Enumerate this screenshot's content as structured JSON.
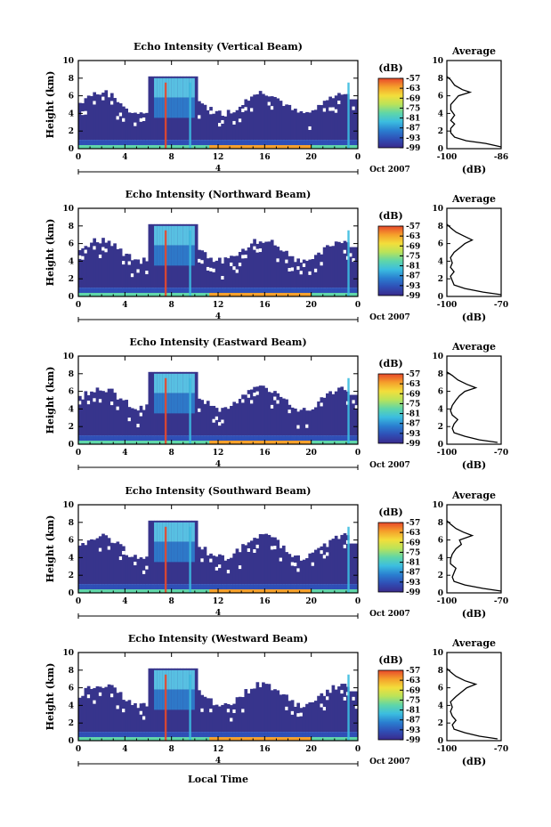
{
  "chart_data": {
    "type": "heatmap",
    "xlabel": "Local Time",
    "date_label": "Oct 2007",
    "ylabel": "Height (km)",
    "x_ticks": [
      "0",
      "4",
      "8",
      "12",
      "16",
      "20",
      "0"
    ],
    "x_range": [
      0,
      24
    ],
    "y_ticks": [
      "0",
      "2",
      "4",
      "6",
      "8",
      "10"
    ],
    "y_range": [
      0,
      10
    ],
    "day_marker": "4",
    "colorbar": {
      "unit": "(dB)",
      "ticks": [
        "-57",
        "-63",
        "-69",
        "-75",
        "-81",
        "-87",
        "-93",
        "-99"
      ],
      "range": [
        -99,
        -57
      ],
      "colors": [
        "#3a2a8c",
        "#2f4fb6",
        "#2a7fd0",
        "#3bbde0",
        "#5fd6a8",
        "#b9e35a",
        "#f3de3b",
        "#f5a02b",
        "#e8482b"
      ]
    },
    "panels": [
      {
        "title": "Echo Intensity (Vertical Beam)",
        "avg_title": "Average",
        "avg_xlabel": "(dB)",
        "avg_xticks": [
          "-100",
          "-86"
        ],
        "avg_xrange": [
          -100,
          -86
        ],
        "avg_profile": [
          {
            "h": 0.2,
            "db": -86
          },
          {
            "h": 0.6,
            "db": -90
          },
          {
            "h": 0.9,
            "db": -95
          },
          {
            "h": 1.3,
            "db": -98
          },
          {
            "h": 1.8,
            "db": -99
          },
          {
            "h": 2.3,
            "db": -99
          },
          {
            "h": 2.8,
            "db": -98
          },
          {
            "h": 3.2,
            "db": -99
          },
          {
            "h": 3.8,
            "db": -98
          },
          {
            "h": 4.4,
            "db": -99
          },
          {
            "h": 5.0,
            "db": -99
          },
          {
            "h": 5.5,
            "db": -98
          },
          {
            "h": 6.0,
            "db": -97
          },
          {
            "h": 6.4,
            "db": -94
          },
          {
            "h": 6.7,
            "db": -96
          },
          {
            "h": 7.2,
            "db": -98
          },
          {
            "h": 7.8,
            "db": -99
          },
          {
            "h": 8.2,
            "db": -100
          }
        ]
      },
      {
        "title": "Echo Intensity (Northward Beam)",
        "avg_title": "Average",
        "avg_xlabel": "(dB)",
        "avg_xticks": [
          "-100",
          "-70"
        ],
        "avg_xrange": [
          -100,
          -70
        ],
        "avg_profile": [
          {
            "h": 0.2,
            "db": -70
          },
          {
            "h": 0.5,
            "db": -80
          },
          {
            "h": 0.9,
            "db": -90
          },
          {
            "h": 1.3,
            "db": -96
          },
          {
            "h": 1.8,
            "db": -97
          },
          {
            "h": 2.3,
            "db": -98
          },
          {
            "h": 2.8,
            "db": -96
          },
          {
            "h": 3.3,
            "db": -98
          },
          {
            "h": 3.8,
            "db": -97
          },
          {
            "h": 4.4,
            "db": -98
          },
          {
            "h": 5.0,
            "db": -96
          },
          {
            "h": 5.5,
            "db": -93
          },
          {
            "h": 6.0,
            "db": -90
          },
          {
            "h": 6.4,
            "db": -86
          },
          {
            "h": 6.8,
            "db": -90
          },
          {
            "h": 7.3,
            "db": -95
          },
          {
            "h": 7.8,
            "db": -98
          },
          {
            "h": 8.2,
            "db": -100
          }
        ]
      },
      {
        "title": "Echo Intensity (Eastward Beam)",
        "avg_title": "Average",
        "avg_xlabel": "(dB)",
        "avg_xticks": [
          "-100",
          "-70"
        ],
        "avg_xrange": [
          -100,
          -70
        ],
        "avg_profile": [
          {
            "h": 0.2,
            "db": -72
          },
          {
            "h": 0.5,
            "db": -82
          },
          {
            "h": 0.9,
            "db": -90
          },
          {
            "h": 1.3,
            "db": -96
          },
          {
            "h": 1.8,
            "db": -97
          },
          {
            "h": 2.3,
            "db": -96
          },
          {
            "h": 2.8,
            "db": -94
          },
          {
            "h": 3.3,
            "db": -97
          },
          {
            "h": 3.8,
            "db": -98
          },
          {
            "h": 4.4,
            "db": -97
          },
          {
            "h": 5.0,
            "db": -95
          },
          {
            "h": 5.5,
            "db": -93
          },
          {
            "h": 6.0,
            "db": -90
          },
          {
            "h": 6.4,
            "db": -84
          },
          {
            "h": 6.8,
            "db": -89
          },
          {
            "h": 7.3,
            "db": -94
          },
          {
            "h": 7.8,
            "db": -97
          },
          {
            "h": 8.2,
            "db": -100
          }
        ]
      },
      {
        "title": "Echo Intensity (Southward Beam)",
        "avg_title": "Average",
        "avg_xlabel": "(dB)",
        "avg_xticks": [
          "-100",
          "-70"
        ],
        "avg_xrange": [
          -100,
          -70
        ],
        "avg_profile": [
          {
            "h": 0.2,
            "db": -70
          },
          {
            "h": 0.5,
            "db": -80
          },
          {
            "h": 0.9,
            "db": -90
          },
          {
            "h": 1.3,
            "db": -96
          },
          {
            "h": 1.8,
            "db": -97
          },
          {
            "h": 2.3,
            "db": -96
          },
          {
            "h": 2.8,
            "db": -95
          },
          {
            "h": 3.3,
            "db": -98
          },
          {
            "h": 3.8,
            "db": -98
          },
          {
            "h": 4.4,
            "db": -97
          },
          {
            "h": 5.0,
            "db": -95
          },
          {
            "h": 5.5,
            "db": -92
          },
          {
            "h": 6.0,
            "db": -93
          },
          {
            "h": 6.5,
            "db": -86
          },
          {
            "h": 6.9,
            "db": -91
          },
          {
            "h": 7.3,
            "db": -95
          },
          {
            "h": 7.8,
            "db": -98
          },
          {
            "h": 8.2,
            "db": -100
          }
        ]
      },
      {
        "title": "Echo Intensity (Westward Beam)",
        "avg_title": "Average",
        "avg_xlabel": "(dB)",
        "avg_xticks": [
          "-100",
          "-70"
        ],
        "avg_xrange": [
          -100,
          -70
        ],
        "avg_profile": [
          {
            "h": 0.2,
            "db": -72
          },
          {
            "h": 0.5,
            "db": -82
          },
          {
            "h": 0.9,
            "db": -90
          },
          {
            "h": 1.3,
            "db": -96
          },
          {
            "h": 1.8,
            "db": -97
          },
          {
            "h": 2.3,
            "db": -95
          },
          {
            "h": 2.8,
            "db": -97
          },
          {
            "h": 3.3,
            "db": -98
          },
          {
            "h": 3.8,
            "db": -97
          },
          {
            "h": 4.4,
            "db": -98
          },
          {
            "h": 5.0,
            "db": -95
          },
          {
            "h": 5.5,
            "db": -92
          },
          {
            "h": 6.0,
            "db": -89
          },
          {
            "h": 6.4,
            "db": -84
          },
          {
            "h": 6.8,
            "db": -90
          },
          {
            "h": 7.3,
            "db": -95
          },
          {
            "h": 7.8,
            "db": -98
          },
          {
            "h": 8.2,
            "db": -100
          }
        ]
      }
    ]
  }
}
